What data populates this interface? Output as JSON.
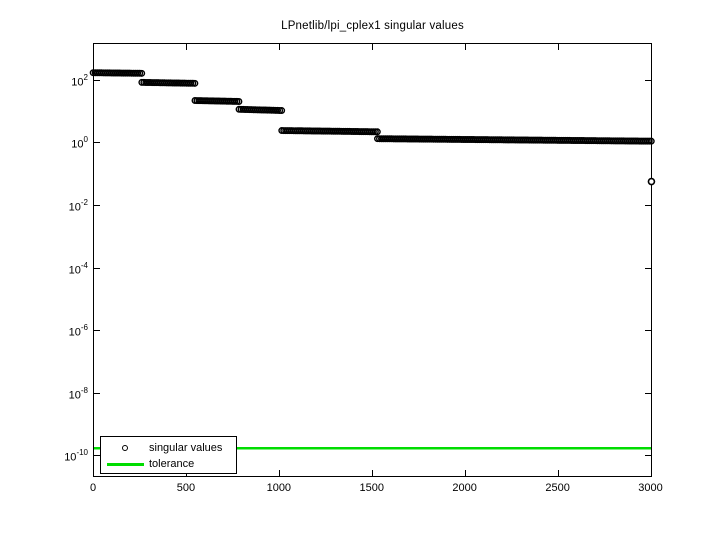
{
  "chart_data": {
    "type": "scatter",
    "scale": "semilogy",
    "title": "LPnetlib/lpi_cplex1 singular values",
    "xlabel": "",
    "ylabel": "",
    "grid": false,
    "xlim": [
      0,
      3008
    ],
    "ylim_log10": [
      -10.7,
      3.18
    ],
    "x_ticks": [
      0,
      500,
      1000,
      1500,
      2000,
      2500,
      3000
    ],
    "y_tick_base": "10",
    "y_tick_exponents": [
      2,
      0,
      -2,
      -4,
      -6,
      -8,
      -10
    ],
    "marker_color": "#000000",
    "tolerance_color": "#00dd00",
    "series": [
      {
        "name": "singular values",
        "marker": "circle",
        "color": "#000000",
        "segments": [
          {
            "x_start": 1,
            "x_end": 262,
            "log10_start": 2.23,
            "log10_end": 2.21
          },
          {
            "x_start": 263,
            "x_end": 548,
            "log10_start": 1.92,
            "log10_end": 1.89
          },
          {
            "x_start": 549,
            "x_end": 785,
            "log10_start": 1.34,
            "log10_end": 1.31
          },
          {
            "x_start": 786,
            "x_end": 1015,
            "log10_start": 1.06,
            "log10_end": 1.02
          },
          {
            "x_start": 1016,
            "x_end": 1530,
            "log10_start": 0.38,
            "log10_end": 0.34
          },
          {
            "x_start": 1531,
            "x_end": 3004,
            "log10_start": 0.12,
            "log10_end": 0.04
          }
        ],
        "outlier_point": {
          "x": 3005,
          "log10": -1.25
        }
      },
      {
        "name": "tolerance",
        "marker": "line",
        "color": "#00dd00",
        "value_log10": -9.78
      }
    ],
    "legend": {
      "position": "southwest",
      "items": [
        {
          "label": "singular values",
          "marker": "circle",
          "color": "#000000"
        },
        {
          "label": "tolerance",
          "marker": "line",
          "color": "#00dd00"
        }
      ]
    }
  }
}
